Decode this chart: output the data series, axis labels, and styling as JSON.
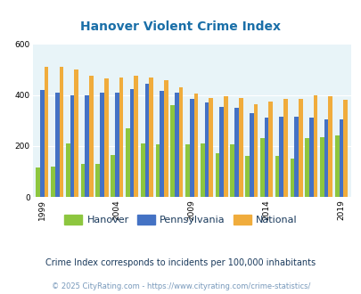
{
  "title": "Hanover Violent Crime Index",
  "title_color": "#1a6fa8",
  "subtitle": "Crime Index corresponds to incidents per 100,000 inhabitants",
  "footer": "© 2025 CityRating.com - https://www.cityrating.com/crime-statistics/",
  "years": [
    1999,
    2000,
    2001,
    2002,
    2003,
    2004,
    2005,
    2006,
    2007,
    2008,
    2009,
    2010,
    2011,
    2012,
    2013,
    2014,
    2015,
    2016,
    2017,
    2018,
    2019
  ],
  "hanover": [
    115,
    120,
    210,
    130,
    130,
    165,
    270,
    210,
    205,
    360,
    205,
    210,
    170,
    205,
    160,
    230,
    160,
    150,
    230,
    235,
    240
  ],
  "pennsylvania": [
    420,
    410,
    400,
    400,
    410,
    410,
    425,
    445,
    415,
    410,
    385,
    370,
    355,
    350,
    330,
    310,
    315,
    315,
    310,
    305,
    305
  ],
  "national": [
    510,
    510,
    500,
    475,
    465,
    470,
    475,
    470,
    460,
    430,
    405,
    390,
    395,
    390,
    365,
    375,
    385,
    385,
    400,
    395,
    380
  ],
  "hanover_color": "#8dc63f",
  "pennsylvania_color": "#4472c4",
  "national_color": "#f0ac3c",
  "bg_color": "#e8f4f8",
  "ylim": [
    0,
    600
  ],
  "yticks": [
    0,
    200,
    400,
    600
  ],
  "xtick_years": [
    1999,
    2004,
    2009,
    2014,
    2019
  ],
  "bar_width": 0.28,
  "legend_labels": [
    "Hanover",
    "Pennsylvania",
    "National"
  ],
  "subtitle_color": "#1a3a5c",
  "footer_color": "#7899bb",
  "title_fontsize": 10,
  "subtitle_fontsize": 7,
  "footer_fontsize": 6,
  "tick_fontsize": 6.5
}
